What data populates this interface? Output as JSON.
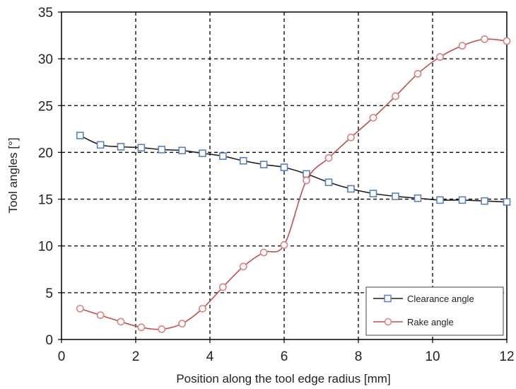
{
  "chart_data": {
    "type": "line",
    "xlabel": "Position along the tool edge radius [mm]",
    "ylabel": "Tool angles [°]",
    "xlim": [
      0,
      12
    ],
    "ylim": [
      0,
      35
    ],
    "xticks": [
      0,
      2,
      4,
      6,
      8,
      10,
      12
    ],
    "yticks": [
      0,
      5,
      10,
      15,
      20,
      25,
      30,
      35
    ],
    "grid": true,
    "legend_position": "bottom-right",
    "series": [
      {
        "name": "Clearance angle",
        "color": "#1f1f1f",
        "marker": "square",
        "marker_color": "#5b7fbf",
        "x": [
          0.5,
          1.05,
          1.6,
          2.15,
          2.7,
          3.25,
          3.8,
          4.35,
          4.9,
          5.45,
          6.0,
          6.6,
          7.2,
          7.8,
          8.4,
          9.0,
          9.6,
          10.2,
          10.8,
          11.4,
          12.0
        ],
        "y": [
          21.8,
          20.8,
          20.6,
          20.5,
          20.3,
          20.2,
          19.9,
          19.6,
          19.1,
          18.7,
          18.4,
          17.7,
          16.8,
          16.1,
          15.6,
          15.3,
          15.1,
          14.9,
          14.9,
          14.8,
          14.7
        ]
      },
      {
        "name": "Rake angle",
        "color": "#c0504d",
        "marker": "circle",
        "marker_color": "#d98380",
        "x": [
          0.5,
          1.05,
          1.6,
          2.15,
          2.7,
          3.25,
          3.8,
          4.35,
          4.9,
          5.45,
          6.0,
          6.6,
          7.2,
          7.8,
          8.4,
          9.0,
          9.6,
          10.2,
          10.8,
          11.4,
          12.0
        ],
        "y": [
          3.3,
          2.6,
          1.9,
          1.3,
          1.1,
          1.7,
          3.3,
          5.6,
          7.8,
          9.3,
          10.1,
          17.0,
          19.4,
          21.6,
          23.7,
          26.0,
          28.4,
          30.2,
          31.4,
          32.1,
          31.9
        ]
      }
    ]
  }
}
